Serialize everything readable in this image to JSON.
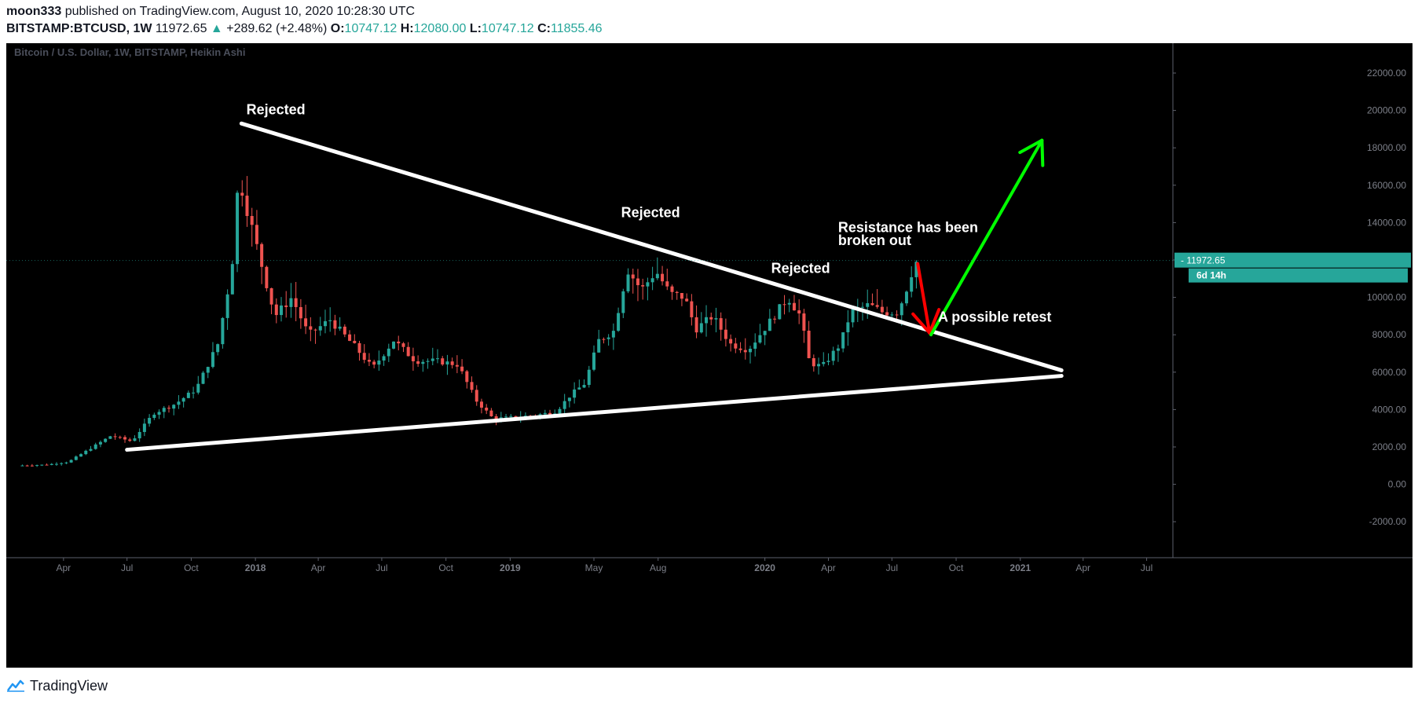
{
  "header": {
    "author": "moon333",
    "published_text": " published on TradingView.com, August 10, 2020 10:28:30 UTC",
    "symbol": "BITSTAMP:BTCUSD, 1W",
    "last": "11972.65",
    "up_arrow": "▲",
    "change": "+289.62 (+2.48%)",
    "o_label": "O:",
    "o_value": "10747.12",
    "h_label": "H:",
    "h_value": "12080.00",
    "l_label": "L:",
    "l_value": "10747.12",
    "c_label": "C:",
    "c_value": "11855.46"
  },
  "chart_data": {
    "type": "candlestick",
    "title": "Bitcoin / U.S. Dollar, 1W, BITSTAMP, Heikin Ashi",
    "colors": {
      "background": "#000000",
      "up": "#26a69a",
      "down": "#ef5350",
      "lines": "#ffffff",
      "green_arrow": "#00ff00",
      "red_arrow": "#ff0000",
      "price_tag": "#26a69a"
    },
    "ylim": [
      -3000,
      23500
    ],
    "y_ticks": [
      {
        "value": 22000,
        "label": "22000.00"
      },
      {
        "value": 20000,
        "label": "20000.00"
      },
      {
        "value": 18000,
        "label": "18000.00"
      },
      {
        "value": 16000,
        "label": "16000.00"
      },
      {
        "value": 14000,
        "label": "14000.00"
      },
      {
        "value": 12000,
        "label": "12000.00"
      },
      {
        "value": 10000,
        "label": "10000.00"
      },
      {
        "value": 8000,
        "label": "8000.00"
      },
      {
        "value": 6000,
        "label": "6000.00"
      },
      {
        "value": 4000,
        "label": "4000.00"
      },
      {
        "value": 2000,
        "label": "2000.00"
      },
      {
        "value": 0,
        "label": "0.00"
      },
      {
        "value": -2000,
        "label": "-2000.00"
      }
    ],
    "x_ticks": [
      {
        "date": "2017-04-01",
        "label": "Apr",
        "bold": false
      },
      {
        "date": "2017-07-01",
        "label": "Jul",
        "bold": false
      },
      {
        "date": "2017-10-01",
        "label": "Oct",
        "bold": false
      },
      {
        "date": "2018-01-01",
        "label": "2018",
        "bold": true
      },
      {
        "date": "2018-04-01",
        "label": "Apr",
        "bold": false
      },
      {
        "date": "2018-07-01",
        "label": "Jul",
        "bold": false
      },
      {
        "date": "2018-10-01",
        "label": "Oct",
        "bold": false
      },
      {
        "date": "2019-01-01",
        "label": "2019",
        "bold": true
      },
      {
        "date": "2019-05-01",
        "label": "May",
        "bold": false
      },
      {
        "date": "2019-08-01",
        "label": "Aug",
        "bold": false
      },
      {
        "date": "2020-01-01",
        "label": "2020",
        "bold": true
      },
      {
        "date": "2020-04-01",
        "label": "Apr",
        "bold": false
      },
      {
        "date": "2020-07-01",
        "label": "Jul",
        "bold": false
      },
      {
        "date": "2020-10-01",
        "label": "Oct",
        "bold": false
      },
      {
        "date": "2021-01-01",
        "label": "2021",
        "bold": true
      },
      {
        "date": "2021-04-01",
        "label": "Apr",
        "bold": false
      },
      {
        "date": "2021-07-01",
        "label": "Jul",
        "bold": false
      }
    ],
    "price_points": [
      [
        "2017-02-01",
        1000
      ],
      [
        "2017-03-15",
        1050
      ],
      [
        "2017-04-15",
        1200
      ],
      [
        "2017-05-20",
        2000
      ],
      [
        "2017-06-15",
        2600
      ],
      [
        "2017-07-15",
        2300
      ],
      [
        "2017-08-15",
        3800
      ],
      [
        "2017-09-15",
        4300
      ],
      [
        "2017-10-15",
        5100
      ],
      [
        "2017-11-15",
        7500
      ],
      [
        "2017-12-05",
        11500
      ],
      [
        "2017-12-15",
        16500
      ],
      [
        "2017-12-25",
        15000
      ],
      [
        "2018-01-15",
        12000
      ],
      [
        "2018-02-05",
        9000
      ],
      [
        "2018-03-01",
        10000
      ],
      [
        "2018-03-25",
        8000
      ],
      [
        "2018-04-25",
        8800
      ],
      [
        "2018-06-01",
        7300
      ],
      [
        "2018-06-25",
        6200
      ],
      [
        "2018-07-25",
        7700
      ],
      [
        "2018-08-25",
        6600
      ],
      [
        "2018-09-25",
        6600
      ],
      [
        "2018-10-25",
        6400
      ],
      [
        "2018-11-20",
        4500
      ],
      [
        "2018-12-15",
        3500
      ],
      [
        "2019-01-15",
        3600
      ],
      [
        "2019-02-15",
        3700
      ],
      [
        "2019-03-15",
        3900
      ],
      [
        "2019-04-05",
        4800
      ],
      [
        "2019-04-25",
        5400
      ],
      [
        "2019-05-15",
        7700
      ],
      [
        "2019-06-05",
        8200
      ],
      [
        "2019-06-25",
        11500
      ],
      [
        "2019-07-15",
        10400
      ],
      [
        "2019-08-05",
        11400
      ],
      [
        "2019-08-25",
        10200
      ],
      [
        "2019-09-15",
        10000
      ],
      [
        "2019-10-01",
        8300
      ],
      [
        "2019-10-25",
        9000
      ],
      [
        "2019-11-20",
        7500
      ],
      [
        "2019-12-15",
        7200
      ],
      [
        "2020-01-15",
        8700
      ],
      [
        "2020-02-10",
        10000
      ],
      [
        "2020-02-28",
        9000
      ],
      [
        "2020-03-12",
        6500
      ],
      [
        "2020-03-30",
        6300
      ],
      [
        "2020-04-25",
        7500
      ],
      [
        "2020-05-10",
        9200
      ],
      [
        "2020-06-05",
        9600
      ],
      [
        "2020-06-25",
        9200
      ],
      [
        "2020-07-15",
        9200
      ],
      [
        "2020-07-25",
        10000
      ],
      [
        "2020-08-10",
        11900
      ]
    ],
    "trendlines": [
      {
        "name": "upper",
        "from": [
          "2017-12-12",
          19300
        ],
        "to": [
          "2021-03-01",
          6100
        ]
      },
      {
        "name": "lower",
        "from": [
          "2017-07-01",
          1850
        ],
        "to": [
          "2021-03-01",
          5800
        ]
      }
    ],
    "arrows": [
      {
        "name": "red-arrow",
        "from": [
          "2020-08-07",
          11800
        ],
        "to": [
          "2020-08-24",
          8100
        ],
        "color": "#ff0000"
      },
      {
        "name": "green-arrow",
        "from": [
          "2020-08-26",
          8000
        ],
        "to": [
          "2021-02-01",
          18400
        ],
        "color": "#00ff00"
      }
    ],
    "annotations": [
      {
        "text": "Rejected",
        "at": [
          "2017-12-19",
          19800
        ]
      },
      {
        "text": "Rejected",
        "at": [
          "2019-06-09",
          14300
        ]
      },
      {
        "text": "Rejected",
        "at": [
          "2020-01-10",
          11300
        ]
      },
      {
        "text": "Resistance has been",
        "at": [
          "2020-04-15",
          13500
        ]
      },
      {
        "text": "broken out",
        "at": [
          "2020-04-15",
          12800
        ]
      },
      {
        "text": "A possible retest",
        "at": [
          "2020-09-05",
          8700
        ]
      }
    ],
    "last_price": {
      "label": "11972.65",
      "value": 11972.65
    },
    "countdown": "6d 14h"
  },
  "footer": {
    "brand": "TradingView"
  }
}
